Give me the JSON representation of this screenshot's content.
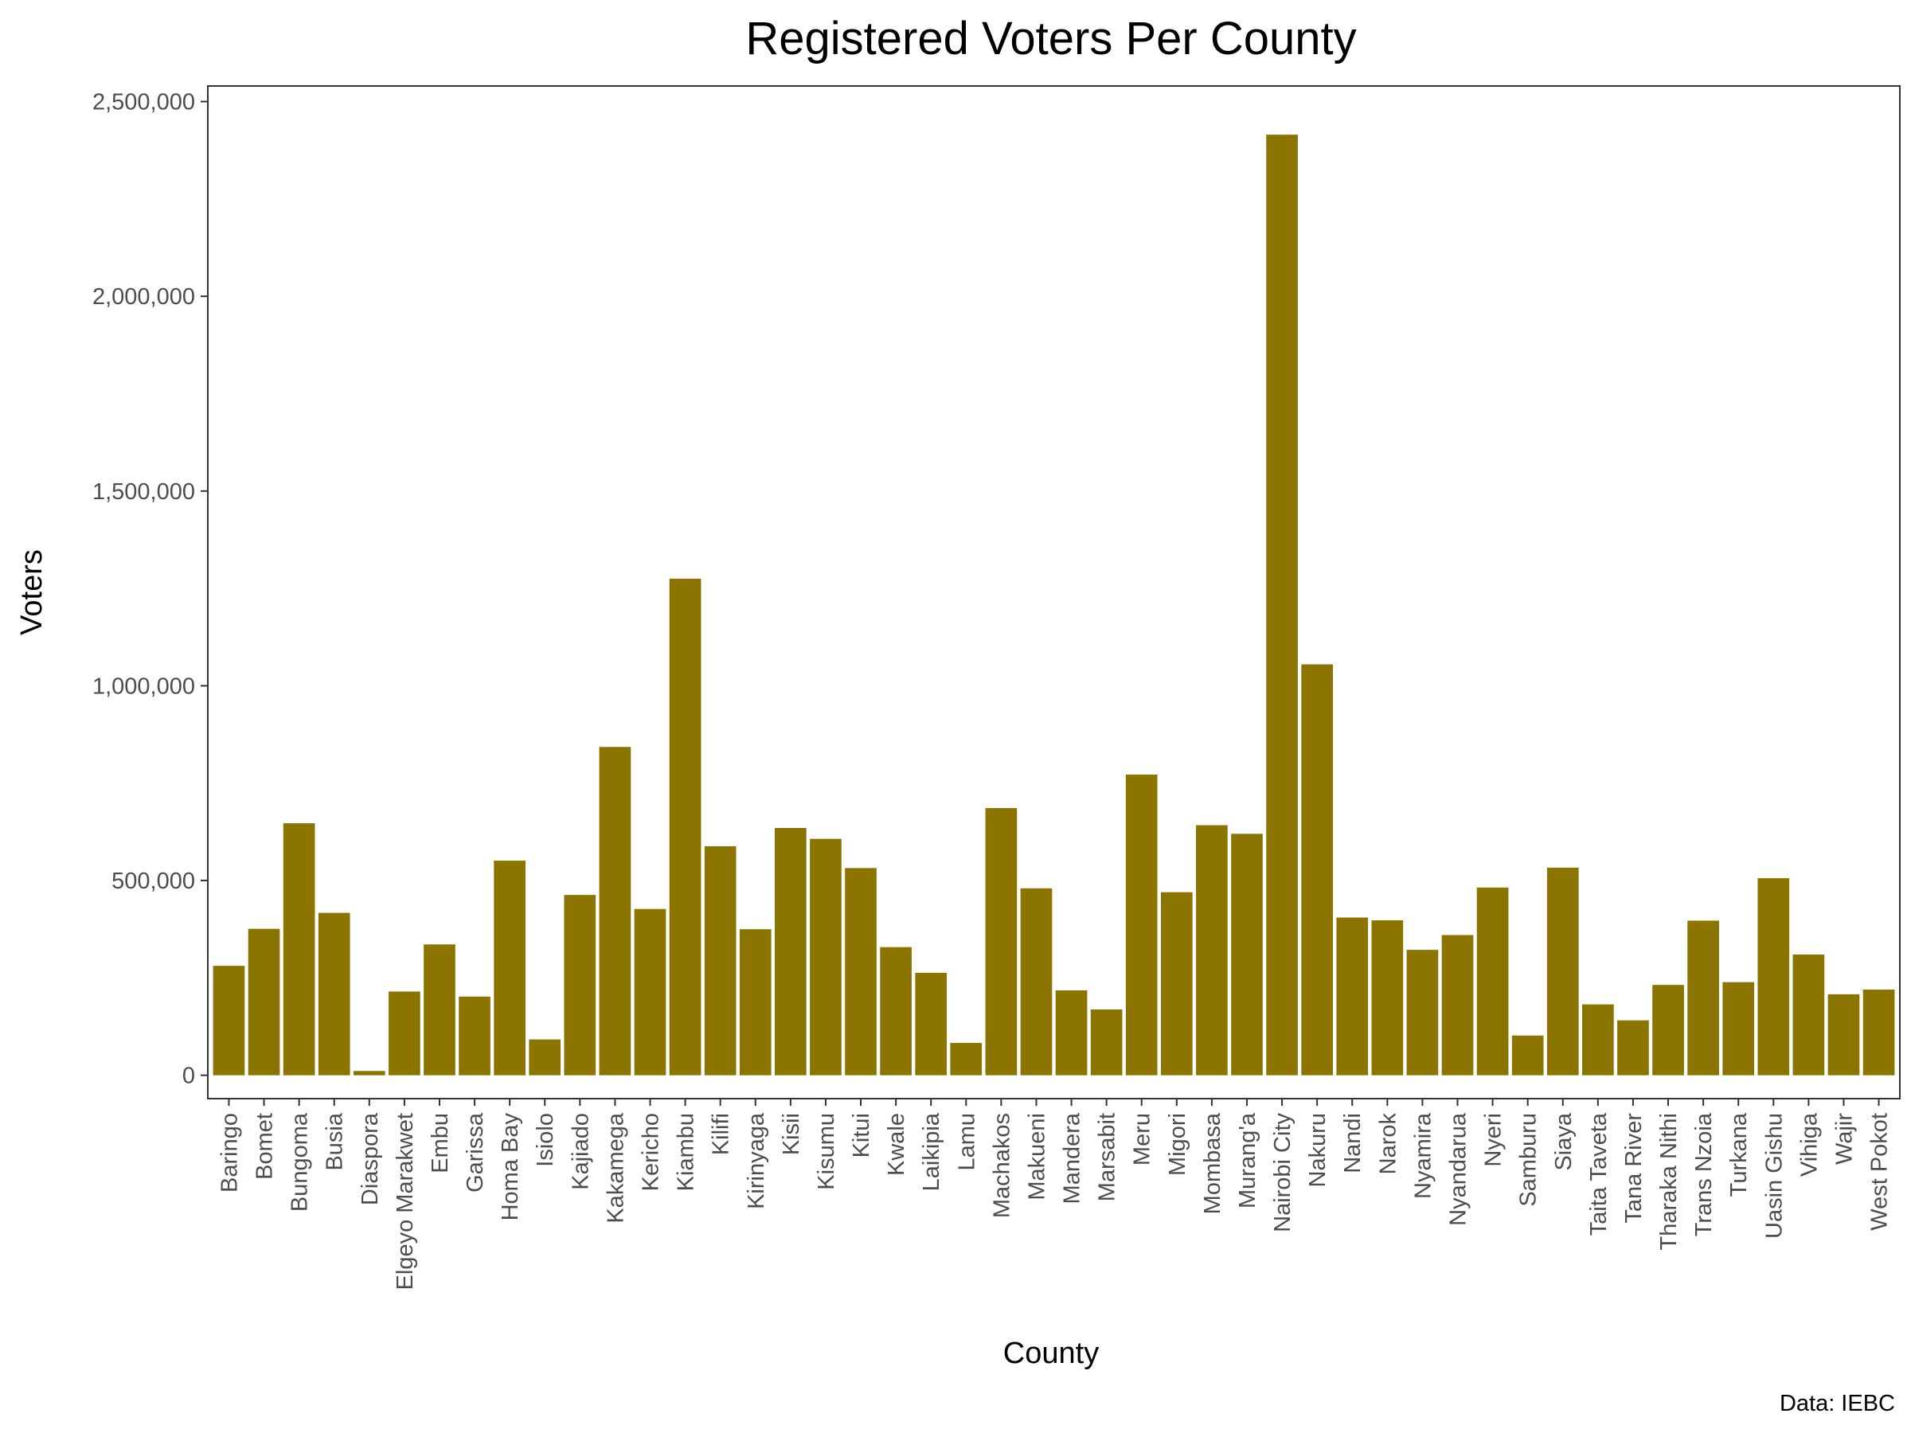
{
  "chart_data": {
    "type": "bar",
    "title": "Registered Voters Per County",
    "xlabel": "County",
    "ylabel": "Voters",
    "caption": "Data: IEBC",
    "ylim": [
      -60000,
      2540000
    ],
    "yticks": [
      0,
      500000,
      1000000,
      1500000,
      2000000,
      2500000
    ],
    "ytick_labels": [
      "0",
      "500,000",
      "1,000,000",
      "1,500,000",
      "2,000,000",
      "2,500,000"
    ],
    "bar_color": "#8b7500",
    "grid": false,
    "legend": "none",
    "categories": [
      "Baringo",
      "Bomet",
      "Bungoma",
      "Busia",
      "Diaspora",
      "Elgeyo Marakwet",
      "Embu",
      "Garissa",
      "Homa Bay",
      "Isiolo",
      "Kajiado",
      "Kakamega",
      "Kericho",
      "Kiambu",
      "Kilifi",
      "Kirinyaga",
      "Kisii",
      "Kisumu",
      "Kitui",
      "Kwale",
      "Laikipia",
      "Lamu",
      "Machakos",
      "Makueni",
      "Mandera",
      "Marsabit",
      "Meru",
      "Migori",
      "Mombasa",
      "Murang'a",
      "Nairobi City",
      "Nakuru",
      "Nandi",
      "Narok",
      "Nyamira",
      "Nyandarua",
      "Nyeri",
      "Samburu",
      "Siaya",
      "Taita Taveta",
      "Tana River",
      "Tharaka Nithi",
      "Trans Nzoia",
      "Turkana",
      "Uasin Gishu",
      "Vihiga",
      "Wajir",
      "West Pokot"
    ],
    "values": [
      281000,
      376000,
      647000,
      417000,
      11000,
      215000,
      336000,
      202000,
      551000,
      92000,
      463000,
      843000,
      427000,
      1275000,
      588000,
      375000,
      635000,
      607000,
      532000,
      329000,
      263000,
      83000,
      686000,
      480000,
      218000,
      169000,
      772000,
      470000,
      642000,
      620000,
      2415000,
      1055000,
      405000,
      398000,
      322000,
      360000,
      482000,
      102000,
      533000,
      182000,
      141000,
      232000,
      397000,
      239000,
      506000,
      310000,
      208000,
      220000
    ]
  }
}
